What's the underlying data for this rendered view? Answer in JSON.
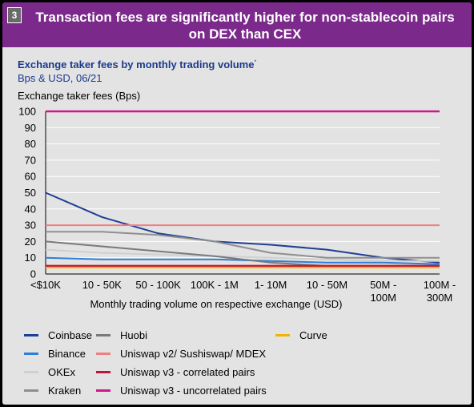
{
  "header": {
    "badge": "3",
    "headline": "Transaction fees are significantly higher for non-stablecoin pairs\non DEX than CEX"
  },
  "chart_data": {
    "type": "line",
    "title": "Exchange taker fees by monthly trading volume",
    "title_mark": "*",
    "subtitle": "Bps & USD, 06/21",
    "ylabel": "Exchange taker fees (Bps)",
    "xlabel": "Monthly trading volume on respective exchange (USD)",
    "ylim": [
      0,
      100
    ],
    "yticks": [
      0,
      10,
      20,
      30,
      40,
      50,
      60,
      70,
      80,
      90,
      100
    ],
    "grid": true,
    "legend_position": "bottom",
    "categories": [
      "<$10K",
      "10 - 50K",
      "50 - 100K",
      "100K - 1M",
      "1- 10M",
      "10 - 50M",
      "50M -\n100M",
      "100M -\n300M"
    ],
    "series": [
      {
        "name": "Coinbase",
        "color": "#1f3f96",
        "values": [
          50,
          35,
          25,
          20,
          18,
          15,
          10,
          7
        ]
      },
      {
        "name": "Binance",
        "color": "#2e7fd6",
        "values": [
          10,
          9,
          9,
          9,
          8,
          7,
          7,
          6
        ]
      },
      {
        "name": "OKEx",
        "color": "#cfcfcf",
        "values": [
          15,
          13,
          12,
          11,
          10,
          9,
          8,
          8
        ]
      },
      {
        "name": "Kraken",
        "color": "#8f8f8f",
        "values": [
          26,
          26,
          24,
          20,
          13,
          10,
          10,
          10
        ]
      },
      {
        "name": "Huobi",
        "color": "#7a7a7a",
        "values": [
          20,
          17,
          14,
          11,
          7,
          5,
          5,
          5
        ]
      },
      {
        "name": "Uniswap v2/ Sushiswap/ MDEX",
        "color": "#f08080",
        "values": [
          30,
          30,
          30,
          30,
          30,
          30,
          30,
          30
        ]
      },
      {
        "name": "Uniswap v3 - correlated pairs",
        "color": "#c0143c",
        "values": [
          5,
          5,
          5,
          5,
          5,
          5,
          5,
          5
        ]
      },
      {
        "name": "Uniswap v3 - uncorrelated pairs",
        "color": "#d1168c",
        "values": [
          100,
          100,
          100,
          100,
          100,
          100,
          100,
          100
        ]
      },
      {
        "name": "Curve",
        "color": "#f2b400",
        "values": [
          4,
          4,
          4,
          4,
          4,
          4,
          4,
          4
        ]
      }
    ]
  }
}
